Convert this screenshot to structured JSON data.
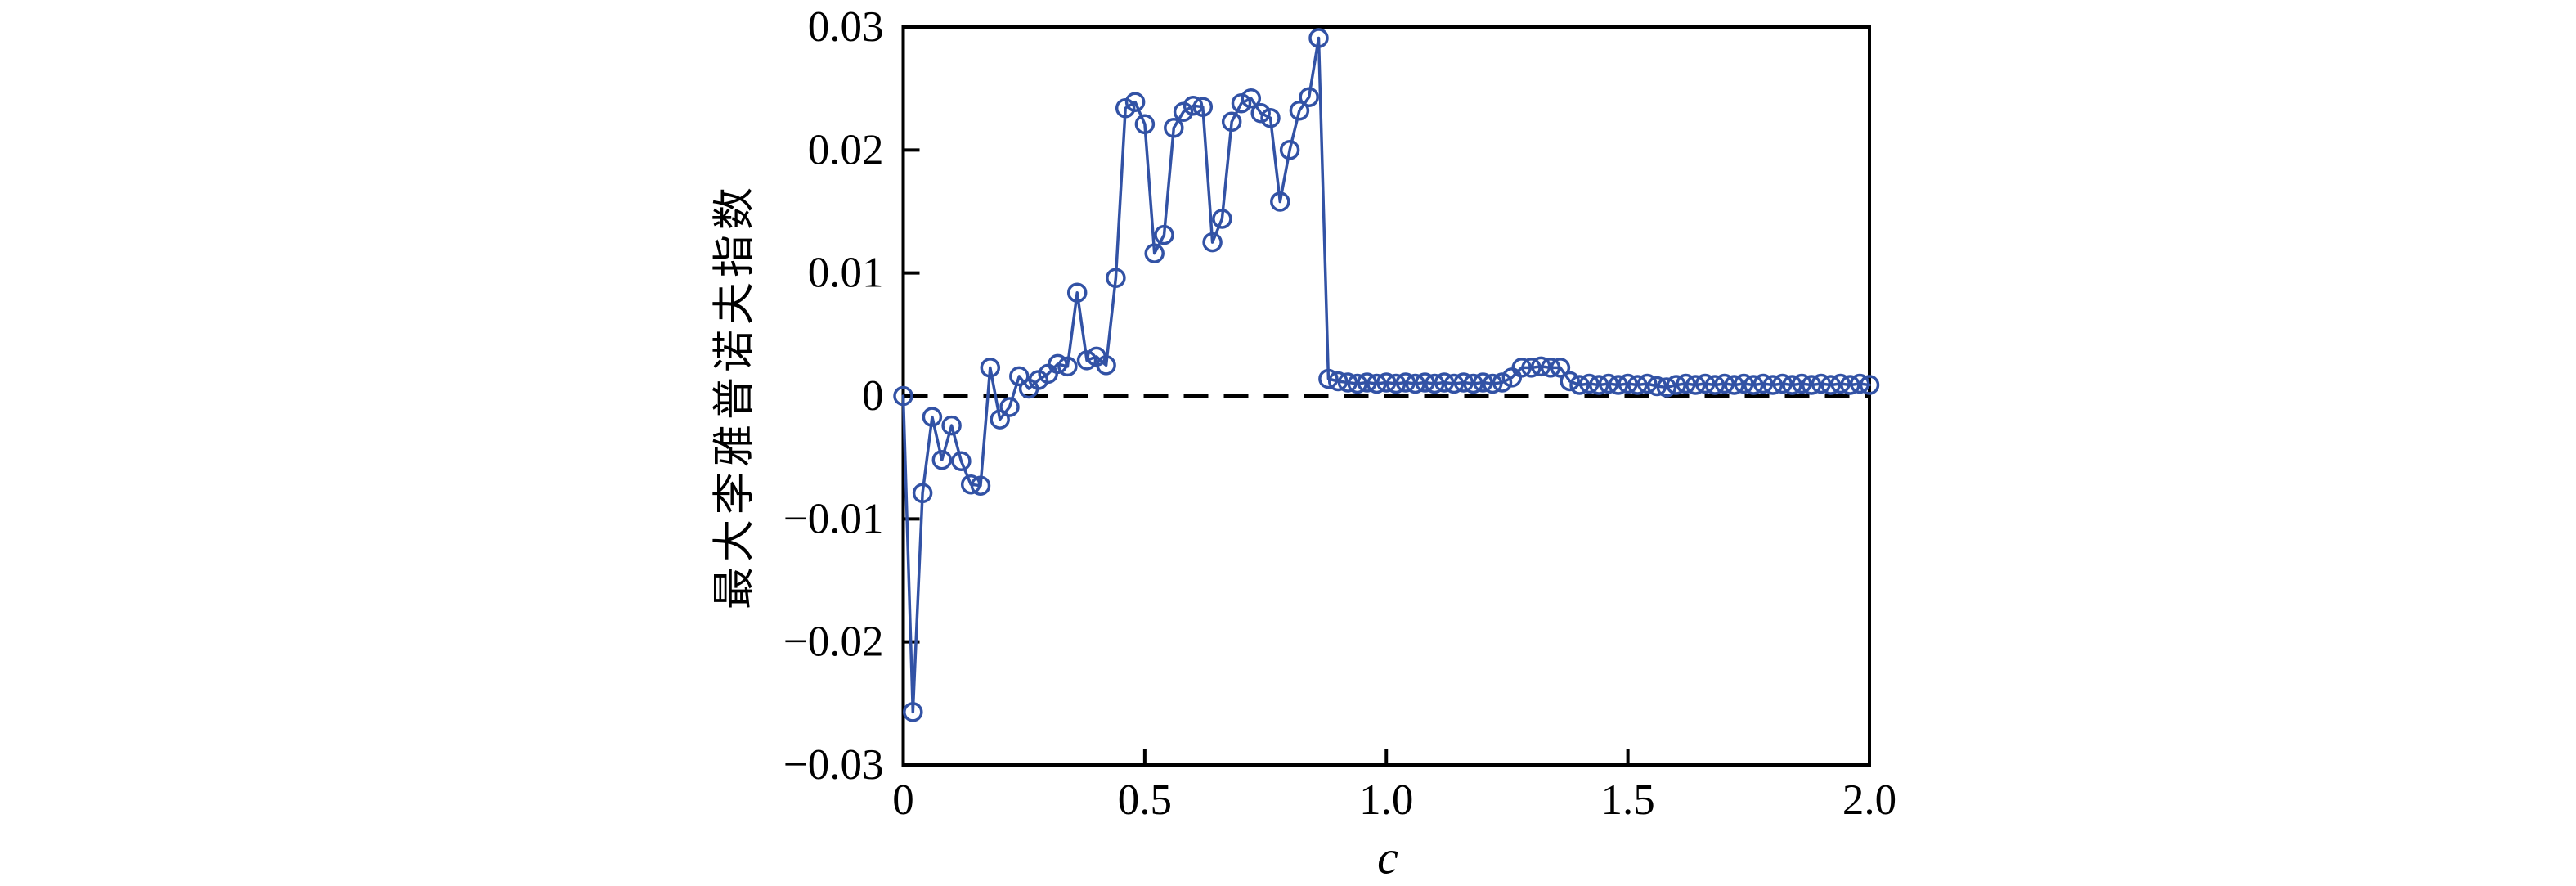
{
  "figure": {
    "background": "#ffffff"
  },
  "chart_data": {
    "type": "line",
    "title": "",
    "xlabel": "c",
    "ylabel": "最大李雅普诺夫指数",
    "xlim": [
      0,
      2.0
    ],
    "ylim": [
      -0.03,
      0.03
    ],
    "x_ticks": [
      0,
      0.5,
      1.0,
      1.5,
      2.0
    ],
    "x_tick_labels": [
      "0",
      "0.5",
      "1.0",
      "1.5",
      "2.0"
    ],
    "y_ticks": [
      -0.03,
      -0.02,
      -0.01,
      0,
      0.01,
      0.02,
      0.03
    ],
    "y_tick_labels": [
      "−0.03",
      "−0.02",
      "−0.01",
      "0",
      "0.01",
      "0.02",
      "0.03"
    ],
    "grid": false,
    "legend_position": "none",
    "zero_line": {
      "value": 0,
      "style": "dashed",
      "color": "#000000"
    },
    "axis_color": "#000000",
    "series": [
      {
        "name": "最大李雅普诺夫指数",
        "marker": "open-circle",
        "color": "#3252a5",
        "x": [
          0.0,
          0.02,
          0.04,
          0.06,
          0.08,
          0.1,
          0.12,
          0.14,
          0.16,
          0.18,
          0.2,
          0.22,
          0.24,
          0.26,
          0.28,
          0.3,
          0.32,
          0.34,
          0.36,
          0.38,
          0.4,
          0.42,
          0.44,
          0.46,
          0.48,
          0.5,
          0.52,
          0.54,
          0.56,
          0.58,
          0.6,
          0.62,
          0.64,
          0.66,
          0.68,
          0.7,
          0.72,
          0.74,
          0.76,
          0.78,
          0.8,
          0.82,
          0.84,
          0.86,
          0.88,
          0.9,
          0.92,
          0.94,
          0.96,
          0.98,
          1.0,
          1.02,
          1.04,
          1.06,
          1.08,
          1.1,
          1.12,
          1.14,
          1.16,
          1.18,
          1.2,
          1.22,
          1.24,
          1.26,
          1.28,
          1.3,
          1.32,
          1.34,
          1.36,
          1.38,
          1.4,
          1.42,
          1.44,
          1.46,
          1.48,
          1.5,
          1.52,
          1.54,
          1.56,
          1.58,
          1.6,
          1.62,
          1.64,
          1.66,
          1.68,
          1.7,
          1.72,
          1.74,
          1.76,
          1.78,
          1.8,
          1.82,
          1.84,
          1.86,
          1.88,
          1.9,
          1.92,
          1.94,
          1.96,
          1.98,
          2.0
        ],
        "y": [
          0.0,
          -0.0257,
          -0.0079,
          -0.0017,
          -0.0052,
          -0.0024,
          -0.0053,
          -0.0072,
          -0.0073,
          0.0023,
          -0.0019,
          -0.0009,
          0.0016,
          0.0006,
          0.0013,
          0.0018,
          0.0026,
          0.0024,
          0.0084,
          0.0029,
          0.0032,
          0.0025,
          0.0096,
          0.0234,
          0.0239,
          0.0221,
          0.0116,
          0.0131,
          0.0218,
          0.0231,
          0.0236,
          0.0235,
          0.0125,
          0.0144,
          0.0223,
          0.0238,
          0.0242,
          0.023,
          0.0226,
          0.0158,
          0.02,
          0.0232,
          0.0243,
          0.0291,
          0.0014,
          0.0012,
          0.0011,
          0.001,
          0.0011,
          0.001,
          0.0011,
          0.001,
          0.0011,
          0.001,
          0.0011,
          0.001,
          0.0011,
          0.001,
          0.0011,
          0.001,
          0.0011,
          0.001,
          0.0011,
          0.0015,
          0.0023,
          0.0023,
          0.0024,
          0.0023,
          0.0023,
          0.0012,
          0.0009,
          0.001,
          0.0009,
          0.001,
          0.0009,
          0.001,
          0.0009,
          0.001,
          0.0008,
          0.0007,
          0.0009,
          0.001,
          0.0009,
          0.001,
          0.0009,
          0.001,
          0.0009,
          0.001,
          0.0009,
          0.001,
          0.0009,
          0.001,
          0.0009,
          0.001,
          0.0009,
          0.001,
          0.0009,
          0.001,
          0.0009,
          0.001,
          0.0009
        ]
      }
    ]
  }
}
